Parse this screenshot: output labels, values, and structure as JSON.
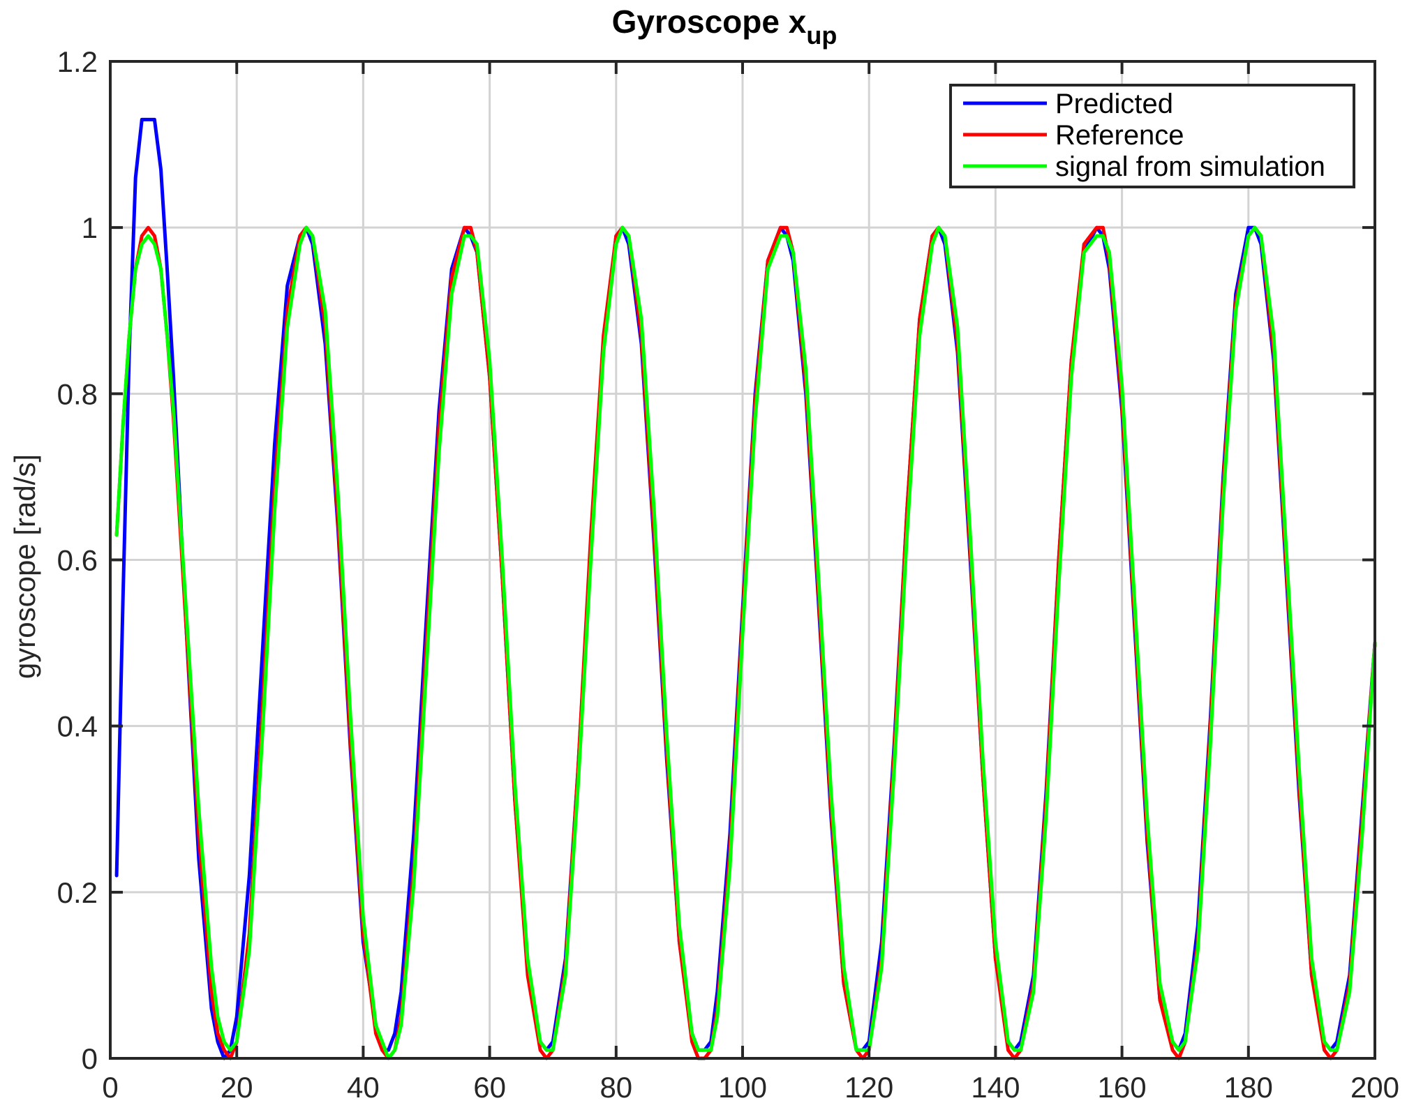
{
  "chart_data": {
    "type": "line",
    "title": "Gyroscope x",
    "title_subscript": "up",
    "xlabel": "",
    "ylabel": "gyroscope [rad/s]",
    "xlim": [
      0,
      200
    ],
    "ylim": [
      0,
      1.2
    ],
    "xticks": [
      0,
      20,
      40,
      60,
      80,
      100,
      120,
      140,
      160,
      180,
      200
    ],
    "yticks": [
      0,
      0.2,
      0.4,
      0.6,
      0.8,
      1,
      1.2
    ],
    "xtick_labels": [
      "0",
      "20",
      "40",
      "60",
      "80",
      "100",
      "120",
      "140",
      "160",
      "180",
      "200"
    ],
    "ytick_labels": [
      "0",
      "0.2",
      "0.4",
      "0.6",
      "0.8",
      "1",
      "1.2"
    ],
    "grid": true,
    "legend_position": "top-right",
    "series": [
      {
        "name": "Predicted",
        "color": "#0000ff",
        "x": [
          1,
          2,
          3,
          4,
          5,
          6,
          7,
          8,
          9,
          10,
          12,
          14,
          16,
          17,
          18,
          19,
          20,
          22,
          24,
          26,
          28,
          30,
          31,
          32,
          34,
          36,
          38,
          40,
          42,
          43,
          44,
          45,
          46,
          48,
          50,
          52,
          54,
          56,
          57,
          58,
          60,
          62,
          64,
          66,
          68,
          69,
          70,
          72,
          74,
          76,
          78,
          80,
          81,
          82,
          84,
          86,
          88,
          90,
          92,
          93,
          94,
          95,
          96,
          98,
          100,
          102,
          104,
          106,
          107,
          108,
          110,
          112,
          114,
          116,
          118,
          119,
          120,
          122,
          124,
          126,
          128,
          130,
          131,
          132,
          134,
          136,
          138,
          140,
          142,
          143,
          144,
          146,
          148,
          150,
          152,
          154,
          156,
          157,
          158,
          160,
          162,
          164,
          166,
          168,
          169,
          170,
          172,
          174,
          176,
          178,
          180,
          181,
          182,
          184,
          186,
          188,
          190,
          192,
          193,
          194,
          196,
          198,
          200
        ],
        "y": [
          0.22,
          0.55,
          0.85,
          1.06,
          1.13,
          1.13,
          1.13,
          1.07,
          0.95,
          0.82,
          0.52,
          0.24,
          0.06,
          0.02,
          0.0,
          0.01,
          0.05,
          0.22,
          0.48,
          0.74,
          0.93,
          0.99,
          1.0,
          0.98,
          0.86,
          0.64,
          0.37,
          0.14,
          0.04,
          0.01,
          0.01,
          0.03,
          0.08,
          0.27,
          0.53,
          0.78,
          0.95,
          1.0,
          0.99,
          0.97,
          0.82,
          0.58,
          0.31,
          0.11,
          0.02,
          0.01,
          0.02,
          0.12,
          0.35,
          0.62,
          0.86,
          0.99,
          1.0,
          0.98,
          0.86,
          0.62,
          0.36,
          0.14,
          0.03,
          0.01,
          0.01,
          0.02,
          0.08,
          0.27,
          0.54,
          0.8,
          0.96,
          1.0,
          0.99,
          0.96,
          0.8,
          0.55,
          0.29,
          0.09,
          0.01,
          0.01,
          0.02,
          0.14,
          0.38,
          0.66,
          0.89,
          0.99,
          1.0,
          0.98,
          0.85,
          0.6,
          0.34,
          0.12,
          0.02,
          0.01,
          0.02,
          0.1,
          0.32,
          0.6,
          0.84,
          0.97,
          1.0,
          0.99,
          0.95,
          0.78,
          0.52,
          0.26,
          0.07,
          0.02,
          0.01,
          0.03,
          0.16,
          0.41,
          0.7,
          0.92,
          1.0,
          1.0,
          0.98,
          0.84,
          0.58,
          0.32,
          0.1,
          0.02,
          0.01,
          0.02,
          0.1,
          0.3,
          0.5
        ]
      },
      {
        "name": "Reference",
        "color": "#ff0000",
        "x": [
          1,
          2,
          3,
          4,
          5,
          6,
          7,
          8,
          9,
          10,
          12,
          14,
          16,
          17,
          18,
          19,
          20,
          22,
          24,
          26,
          28,
          30,
          31,
          32,
          34,
          36,
          38,
          40,
          42,
          43,
          44,
          45,
          46,
          48,
          50,
          52,
          54,
          56,
          57,
          58,
          60,
          62,
          64,
          66,
          68,
          69,
          70,
          72,
          74,
          76,
          78,
          80,
          81,
          82,
          84,
          86,
          88,
          90,
          92,
          93,
          94,
          95,
          96,
          98,
          100,
          102,
          104,
          106,
          107,
          108,
          110,
          112,
          114,
          116,
          118,
          119,
          120,
          122,
          124,
          126,
          128,
          130,
          131,
          132,
          134,
          136,
          138,
          140,
          142,
          143,
          144,
          146,
          148,
          150,
          152,
          154,
          156,
          157,
          158,
          160,
          162,
          164,
          166,
          168,
          169,
          170,
          172,
          174,
          176,
          178,
          180,
          181,
          182,
          184,
          186,
          188,
          190,
          192,
          193,
          194,
          196,
          198,
          200
        ],
        "y": [
          0.63,
          0.76,
          0.87,
          0.95,
          0.99,
          1.0,
          0.99,
          0.95,
          0.87,
          0.77,
          0.52,
          0.27,
          0.08,
          0.03,
          0.01,
          0.0,
          0.02,
          0.15,
          0.41,
          0.69,
          0.9,
          0.99,
          1.0,
          0.99,
          0.88,
          0.65,
          0.38,
          0.15,
          0.03,
          0.01,
          0.0,
          0.01,
          0.05,
          0.23,
          0.5,
          0.76,
          0.94,
          1.0,
          1.0,
          0.97,
          0.82,
          0.58,
          0.31,
          0.1,
          0.01,
          0.0,
          0.01,
          0.11,
          0.35,
          0.63,
          0.87,
          0.99,
          1.0,
          0.99,
          0.87,
          0.63,
          0.37,
          0.14,
          0.02,
          0.0,
          0.0,
          0.01,
          0.06,
          0.25,
          0.53,
          0.79,
          0.96,
          1.0,
          1.0,
          0.97,
          0.81,
          0.56,
          0.3,
          0.09,
          0.01,
          0.0,
          0.01,
          0.12,
          0.37,
          0.66,
          0.89,
          0.99,
          1.0,
          0.99,
          0.86,
          0.61,
          0.34,
          0.12,
          0.01,
          0.0,
          0.01,
          0.09,
          0.31,
          0.6,
          0.84,
          0.98,
          1.0,
          1.0,
          0.96,
          0.79,
          0.53,
          0.27,
          0.07,
          0.01,
          0.0,
          0.02,
          0.14,
          0.4,
          0.69,
          0.91,
          0.99,
          1.0,
          0.99,
          0.85,
          0.59,
          0.33,
          0.1,
          0.01,
          0.0,
          0.01,
          0.09,
          0.29,
          0.5
        ]
      },
      {
        "name": "signal from simulation",
        "color": "#00ff00",
        "x": [
          1,
          2,
          3,
          4,
          5,
          6,
          7,
          8,
          9,
          10,
          12,
          14,
          16,
          17,
          18,
          19,
          20,
          22,
          24,
          26,
          28,
          30,
          31,
          32,
          34,
          36,
          38,
          40,
          42,
          43,
          44,
          45,
          46,
          48,
          50,
          52,
          54,
          56,
          57,
          58,
          60,
          62,
          64,
          66,
          68,
          69,
          70,
          72,
          74,
          76,
          78,
          80,
          81,
          82,
          84,
          86,
          88,
          90,
          92,
          93,
          94,
          95,
          96,
          98,
          100,
          102,
          104,
          106,
          107,
          108,
          110,
          112,
          114,
          116,
          118,
          119,
          120,
          122,
          124,
          126,
          128,
          130,
          131,
          132,
          134,
          136,
          138,
          140,
          142,
          143,
          144,
          146,
          148,
          150,
          152,
          154,
          156,
          157,
          158,
          160,
          162,
          164,
          166,
          168,
          169,
          170,
          172,
          174,
          176,
          178,
          180,
          181,
          182,
          184,
          186,
          188,
          190,
          192,
          193,
          194,
          196,
          198,
          200
        ],
        "y": [
          0.63,
          0.76,
          0.87,
          0.95,
          0.98,
          0.99,
          0.98,
          0.95,
          0.87,
          0.78,
          0.54,
          0.3,
          0.11,
          0.05,
          0.02,
          0.01,
          0.02,
          0.13,
          0.38,
          0.66,
          0.88,
          0.98,
          1.0,
          0.99,
          0.9,
          0.68,
          0.41,
          0.17,
          0.04,
          0.02,
          0.0,
          0.01,
          0.04,
          0.21,
          0.47,
          0.73,
          0.92,
          0.99,
          0.99,
          0.98,
          0.84,
          0.6,
          0.33,
          0.12,
          0.02,
          0.01,
          0.01,
          0.1,
          0.33,
          0.6,
          0.85,
          0.98,
          1.0,
          0.99,
          0.89,
          0.66,
          0.39,
          0.16,
          0.03,
          0.01,
          0.01,
          0.01,
          0.05,
          0.23,
          0.51,
          0.77,
          0.95,
          0.99,
          0.99,
          0.97,
          0.83,
          0.58,
          0.32,
          0.11,
          0.01,
          0.01,
          0.01,
          0.11,
          0.35,
          0.63,
          0.87,
          0.98,
          1.0,
          0.99,
          0.88,
          0.63,
          0.36,
          0.14,
          0.02,
          0.01,
          0.01,
          0.08,
          0.29,
          0.57,
          0.82,
          0.97,
          0.99,
          0.99,
          0.97,
          0.81,
          0.55,
          0.29,
          0.09,
          0.02,
          0.01,
          0.02,
          0.13,
          0.38,
          0.67,
          0.9,
          0.99,
          1.0,
          0.99,
          0.87,
          0.61,
          0.35,
          0.12,
          0.02,
          0.01,
          0.01,
          0.08,
          0.27,
          0.5
        ]
      }
    ]
  }
}
